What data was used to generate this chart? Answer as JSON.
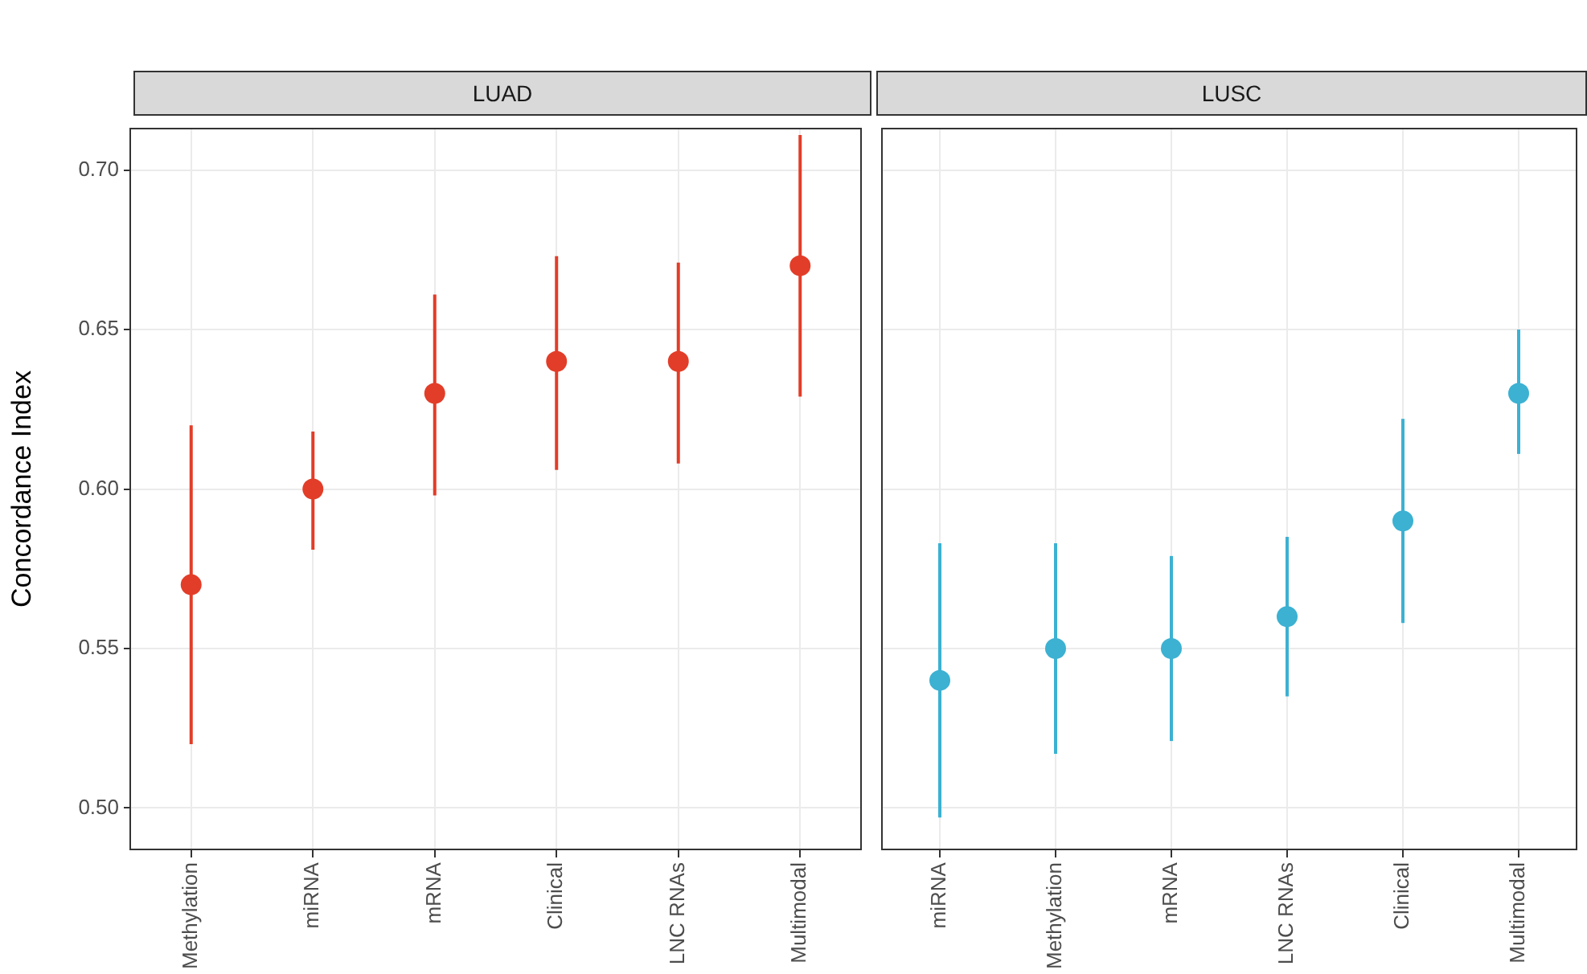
{
  "chart_data": [
    {
      "type": "scatter",
      "title": "LUAD",
      "ylabel": "Concordance Index",
      "categories": [
        "Methylation",
        "miRNA",
        "mRNA",
        "Clinical",
        "LNC RNAs",
        "Multimodal"
      ],
      "series": [
        {
          "color": "#e23d28",
          "values": [
            0.57,
            0.6,
            0.63,
            0.64,
            0.64,
            0.67
          ],
          "errors": [
            [
              0.52,
              0.62
            ],
            [
              0.581,
              0.618
            ],
            [
              0.598,
              0.661
            ],
            [
              0.606,
              0.673
            ],
            [
              0.608,
              0.671
            ],
            [
              0.629,
              0.711
            ]
          ]
        }
      ],
      "ylim": [
        0.487,
        0.713
      ],
      "yticks": [
        {
          "value": 0.5,
          "label": "0.50"
        },
        0.55,
        {
          "value": 0.6,
          "label": "0.60"
        },
        0.65,
        {
          "value": 0.7,
          "label": "0.70"
        }
      ],
      "grid": true,
      "legend": false,
      "marker": "circle"
    },
    {
      "type": "scatter",
      "title": "LUSC",
      "categories": [
        "miRNA",
        "Methylation",
        "mRNA",
        "LNC RNAs",
        "Clinical",
        "Multimodal"
      ],
      "series": [
        {
          "color": "#3cb1d2",
          "values": [
            0.54,
            0.55,
            0.55,
            0.56,
            0.59,
            0.63
          ],
          "errors": [
            [
              0.497,
              0.583
            ],
            [
              0.517,
              0.583
            ],
            [
              0.521,
              0.579
            ],
            [
              0.535,
              0.585
            ],
            [
              0.558,
              0.622
            ],
            [
              0.611,
              0.65
            ]
          ]
        }
      ],
      "ylim": [
        0.487,
        0.713
      ],
      "yticks": [
        0.5,
        0.55,
        0.6,
        0.65,
        0.7
      ],
      "grid": true,
      "legend": false,
      "marker": "circle",
      "tick_labels": "x"
    }
  ]
}
